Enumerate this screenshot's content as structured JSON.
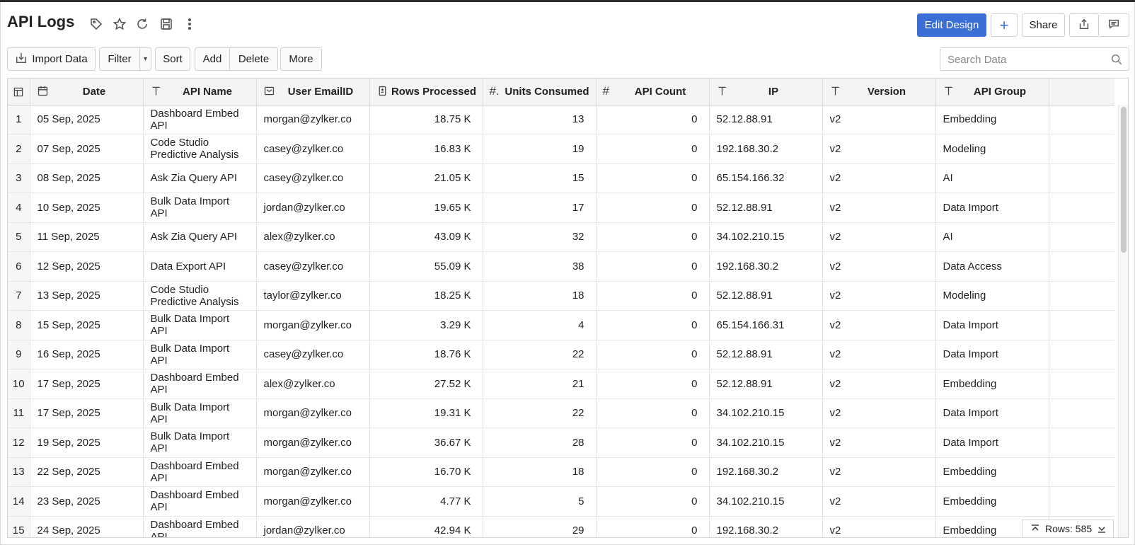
{
  "header": {
    "title": "API Logs",
    "edit_design_label": "Edit Design",
    "add_symbol": "+",
    "share_label": "Share"
  },
  "toolbar": {
    "import_label": "Import Data",
    "filter_label": "Filter",
    "sort_label": "Sort",
    "add_label": "Add",
    "delete_label": "Delete",
    "more_label": "More"
  },
  "search": {
    "placeholder": "Search Data"
  },
  "colors": {
    "accent": "#3b6fd6",
    "header_bg": "#f4f4f4",
    "border": "#d6d6d6"
  },
  "columns": [
    {
      "label": "",
      "icon": "table-settings-icon"
    },
    {
      "label": "Date",
      "icon": "calendar-icon"
    },
    {
      "label": "API Name",
      "icon": "text-type-icon"
    },
    {
      "label": "User EmailID",
      "icon": "email-type-icon"
    },
    {
      "label": "Rows Processed",
      "icon": "number-format-icon"
    },
    {
      "label": "Units Consumed",
      "icon": "decimal-type-icon"
    },
    {
      "label": "API Count",
      "icon": "number-type-icon"
    },
    {
      "label": "IP",
      "icon": "text-type-icon"
    },
    {
      "label": "Version",
      "icon": "text-type-icon"
    },
    {
      "label": "API Group",
      "icon": "text-type-icon"
    }
  ],
  "rows": [
    [
      "1",
      "05 Sep, 2025",
      "Dashboard Embed API",
      "morgan@zylker.co",
      "18.75 K",
      "13",
      "0",
      "52.12.88.91",
      "v2",
      "Embedding"
    ],
    [
      "2",
      "07 Sep, 2025",
      "Code Studio Predictive Analysis",
      "casey@zylker.co",
      "16.83 K",
      "19",
      "0",
      "192.168.30.2",
      "v2",
      "Modeling"
    ],
    [
      "3",
      "08 Sep, 2025",
      "Ask Zia Query API",
      "casey@zylker.co",
      "21.05 K",
      "15",
      "0",
      "65.154.166.32",
      "v2",
      "AI"
    ],
    [
      "4",
      "10 Sep, 2025",
      "Bulk Data Import API",
      "jordan@zylker.co",
      "19.65 K",
      "17",
      "0",
      "52.12.88.91",
      "v2",
      "Data Import"
    ],
    [
      "5",
      "11 Sep, 2025",
      "Ask Zia Query API",
      "alex@zylker.co",
      "43.09 K",
      "32",
      "0",
      "34.102.210.15",
      "v2",
      "AI"
    ],
    [
      "6",
      "12 Sep, 2025",
      "Data Export API",
      "casey@zylker.co",
      "55.09 K",
      "38",
      "0",
      "192.168.30.2",
      "v2",
      "Data Access"
    ],
    [
      "7",
      "13 Sep, 2025",
      "Code Studio Predictive Analysis",
      "taylor@zylker.co",
      "18.25 K",
      "18",
      "0",
      "52.12.88.91",
      "v2",
      "Modeling"
    ],
    [
      "8",
      "15 Sep, 2025",
      "Bulk Data Import API",
      "morgan@zylker.co",
      "3.29 K",
      "4",
      "0",
      "65.154.166.31",
      "v2",
      "Data Import"
    ],
    [
      "9",
      "16 Sep, 2025",
      "Bulk Data Import API",
      "casey@zylker.co",
      "18.76 K",
      "22",
      "0",
      "52.12.88.91",
      "v2",
      "Data Import"
    ],
    [
      "10",
      "17 Sep, 2025",
      "Dashboard Embed API",
      "alex@zylker.co",
      "27.52 K",
      "21",
      "0",
      "52.12.88.91",
      "v2",
      "Embedding"
    ],
    [
      "11",
      "17 Sep, 2025",
      "Bulk Data Import API",
      "morgan@zylker.co",
      "19.31 K",
      "22",
      "0",
      "34.102.210.15",
      "v2",
      "Data Import"
    ],
    [
      "12",
      "19 Sep, 2025",
      "Bulk Data Import API",
      "morgan@zylker.co",
      "36.67 K",
      "28",
      "0",
      "34.102.210.15",
      "v2",
      "Data Import"
    ],
    [
      "13",
      "22 Sep, 2025",
      "Dashboard Embed API",
      "morgan@zylker.co",
      "16.70 K",
      "18",
      "0",
      "192.168.30.2",
      "v2",
      "Embedding"
    ],
    [
      "14",
      "23 Sep, 2025",
      "Dashboard Embed API",
      "morgan@zylker.co",
      "4.77 K",
      "5",
      "0",
      "34.102.210.15",
      "v2",
      "Embedding"
    ],
    [
      "15",
      "24 Sep, 2025",
      "Dashboard Embed API",
      "jordan@zylker.co",
      "42.94 K",
      "29",
      "0",
      "192.168.30.2",
      "v2",
      "Embedding"
    ]
  ],
  "footer": {
    "rows_label": "Rows: 585"
  }
}
